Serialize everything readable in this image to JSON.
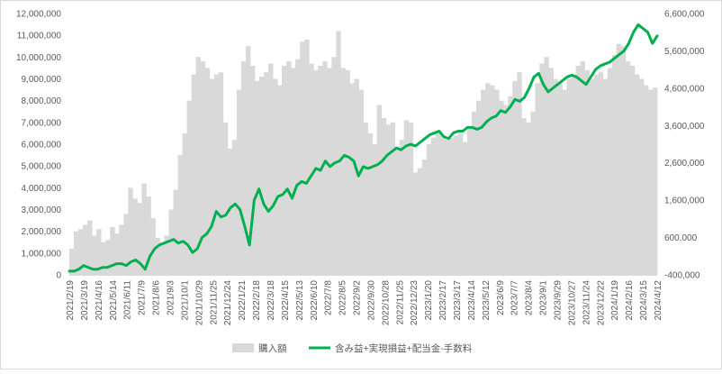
{
  "chart_data": {
    "type": "bar+line",
    "categories": [
      "2021/2/19",
      "2021/3/19",
      "2021/4/16",
      "2021/5/14",
      "2021/6/11",
      "2021/7/9",
      "2021/8/6",
      "2021/9/3",
      "2021/10/1",
      "2021/10/29",
      "2021/11/25",
      "2021/12/24",
      "2022/1/21",
      "2022/2/18",
      "2022/3/18",
      "2022/4/15",
      "2022/5/13",
      "2022/6/10",
      "2022/7/8",
      "2022/8/5",
      "2022/9/2",
      "2022/9/30",
      "2022/10/28",
      "2022/11/25",
      "2022/12/23",
      "2023/1/20",
      "2023/2/17",
      "2023/3/17",
      "2023/4/14",
      "2023/5/12",
      "2023/6/9",
      "2023/7/7",
      "2023/8/4",
      "2023/9/1",
      "2023/9/29",
      "2023/10/27",
      "2023/11/24",
      "2023/12/22",
      "2024/1/19",
      "2024/2/16",
      "2024/3/15",
      "2024/4/12"
    ],
    "bar_series": {
      "name": "購入額",
      "color": "#d9d9d9",
      "axis": "left",
      "values": [
        1200000,
        2000000,
        2100000,
        2300000,
        2500000,
        1800000,
        2100000,
        1500000,
        1600000,
        2200000,
        1900000,
        2300000,
        2800000,
        4000000,
        3500000,
        3300000,
        4200000,
        3600000,
        2600000,
        1700000,
        1500000,
        1800000,
        3000000,
        3900000,
        5500000,
        6500000,
        8000000,
        9200000,
        10000000,
        9800000,
        9500000,
        9000000,
        9200000,
        9300000,
        7000000,
        5800000,
        6200000,
        8500000,
        9800000,
        10500000,
        9600000,
        8900000,
        9100000,
        9300000,
        9700000,
        9000000,
        8700000,
        9600000,
        9800000,
        9500000,
        9900000,
        10700000,
        10800000,
        9700000,
        9400000,
        9600000,
        9800000,
        9500000,
        10000000,
        11200000,
        9500000,
        9400000,
        8800000,
        9000000,
        8500000,
        7000000,
        6500000,
        6000000,
        7800000,
        7200000,
        6900000,
        7000000,
        5800000,
        6200000,
        7100000,
        7000000,
        4700000,
        4900000,
        5300000,
        6000000,
        6300000,
        6500000,
        6400000,
        6200000,
        6300000,
        6400000,
        6500000,
        6100000,
        6800000,
        7500000,
        8000000,
        8500000,
        8800000,
        8700000,
        8500000,
        8000000,
        7800000,
        8200000,
        8900000,
        9300000,
        7200000,
        7000000,
        7500000,
        8800000,
        9700000,
        10000000,
        9500000,
        9000000,
        8800000,
        8500000,
        9000000,
        9200000,
        9600000,
        9800000,
        9400000,
        9000000,
        9200000,
        9300000,
        9000000,
        9500000,
        10100000,
        10600000,
        10500000,
        9800000,
        9600000,
        9200000,
        9000000,
        8700000,
        8500000,
        8600000
      ],
      "show_every_bar": true
    },
    "line_series": {
      "name": "含み益+実現損益+配当金-手数料",
      "color": "#00b050",
      "axis": "right",
      "values": [
        -300000,
        -300000,
        -250000,
        -150000,
        -200000,
        -250000,
        -250000,
        -200000,
        -200000,
        -150000,
        -100000,
        -100000,
        -150000,
        -50000,
        0,
        -100000,
        -250000,
        100000,
        300000,
        400000,
        450000,
        500000,
        550000,
        450000,
        500000,
        400000,
        200000,
        300000,
        600000,
        700000,
        900000,
        1300000,
        1150000,
        1200000,
        1400000,
        1500000,
        1350000,
        900000,
        400000,
        1600000,
        1900000,
        1500000,
        1300000,
        1450000,
        1700000,
        1750000,
        1900000,
        1650000,
        2000000,
        2100000,
        2050000,
        2250000,
        2450000,
        2400000,
        2650000,
        2500000,
        2600000,
        2650000,
        2800000,
        2750000,
        2650000,
        2250000,
        2500000,
        2450000,
        2500000,
        2550000,
        2650000,
        2800000,
        2900000,
        3000000,
        2950000,
        3050000,
        3100000,
        3050000,
        3150000,
        3250000,
        3350000,
        3400000,
        3450000,
        3300000,
        3250000,
        3400000,
        3450000,
        3450000,
        3550000,
        3550000,
        3500000,
        3550000,
        3700000,
        3800000,
        3850000,
        4000000,
        3950000,
        4100000,
        4300000,
        4250000,
        4350000,
        4600000,
        4900000,
        5000000,
        4700000,
        4500000,
        4600000,
        4700000,
        4800000,
        4900000,
        4950000,
        4900000,
        4800000,
        4700000,
        4900000,
        5100000,
        5200000,
        5250000,
        5300000,
        5400000,
        5500000,
        5600000,
        5800000,
        6100000,
        6300000,
        6200000,
        6100000,
        5800000,
        6000000
      ],
      "line_width": 3
    },
    "left_axis": {
      "min": 0,
      "max": 12000000,
      "step": 1000000,
      "tick_labels": [
        "0",
        "1,000,000",
        "2,000,000",
        "3,000,000",
        "4,000,000",
        "5,000,000",
        "6,000,000",
        "7,000,000",
        "8,000,000",
        "9,000,000",
        "10,000,000",
        "11,000,000",
        "12,000,000"
      ]
    },
    "right_axis": {
      "min": -400000,
      "max": 6600000,
      "step": 1000000,
      "tick_labels": [
        "-400,000",
        "600,000",
        "1,600,000",
        "2,600,000",
        "3,600,000",
        "4,600,000",
        "5,600,000",
        "6,600,000"
      ]
    },
    "x_tick_labels_rotated": true,
    "legend": {
      "position": "bottom",
      "items": [
        "購入額",
        "含み益+実現損益+配当金-手数料"
      ]
    },
    "grid": false,
    "colors": {
      "bar": "#d9d9d9",
      "line": "#00b050",
      "axis_text": "#595959",
      "border": "#d9d9d9"
    }
  }
}
